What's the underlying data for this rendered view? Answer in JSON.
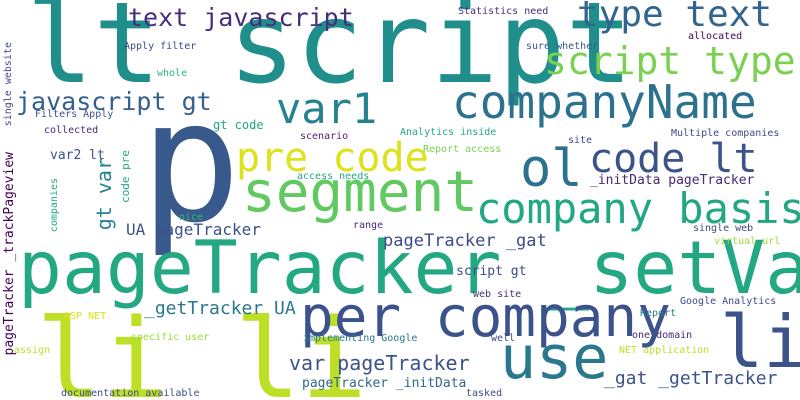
{
  "words": [
    {
      "text": "lt script",
      "color": "#208f8c"
    },
    {
      "text": "p",
      "color": "#38598c"
    },
    {
      "text": "pageTracker _setVar",
      "color": "#24a884"
    },
    {
      "text": "li li",
      "color": "#bddf26"
    },
    {
      "text": "companyName",
      "color": "#2c728e"
    },
    {
      "text": "segment",
      "color": "#60ca60"
    },
    {
      "text": "per company",
      "color": "#3b528b"
    },
    {
      "text": "use",
      "color": "#2a788e"
    },
    {
      "text": "company basis",
      "color": "#22a785"
    },
    {
      "text": "script type",
      "color": "#7ad151"
    },
    {
      "text": "type text",
      "color": "#32658e"
    },
    {
      "text": "var1",
      "color": "#25838e"
    },
    {
      "text": "pre code",
      "color": "#dde318"
    },
    {
      "text": "ol",
      "color": "#2c728e"
    },
    {
      "text": "code lt",
      "color": "#3b528b"
    },
    {
      "text": "li",
      "color": "#3b528b"
    },
    {
      "text": "text javascript",
      "color": "#472d7b"
    },
    {
      "text": "javascript gt",
      "color": "#35608d"
    },
    {
      "text": "gt var",
      "color": "#25838e"
    },
    {
      "text": "UA pageTracker",
      "color": "#3b528b"
    },
    {
      "text": "pageTracker _gat",
      "color": "#3e4a89"
    },
    {
      "text": "var pageTracker",
      "color": "#3b528b"
    },
    {
      "text": "_getTracker UA",
      "color": "#2a788e"
    },
    {
      "text": "_gat _getTracker",
      "color": "#3b528b"
    },
    {
      "text": "pageTracker _initData",
      "color": "#31688e"
    },
    {
      "text": "_initData pageTracker",
      "color": "#482878"
    },
    {
      "text": "Statistics need",
      "color": "#472d7b"
    },
    {
      "text": "sure whether",
      "color": "#38598c"
    },
    {
      "text": "allocated",
      "color": "#440154"
    },
    {
      "text": "Apply filter",
      "color": "#3e4a89"
    },
    {
      "text": "whole",
      "color": "#2fb47c"
    },
    {
      "text": "gt code",
      "color": "#22a785"
    },
    {
      "text": "scenario",
      "color": "#482878"
    },
    {
      "text": "Analytics inside",
      "color": "#22a785"
    },
    {
      "text": "site",
      "color": "#414487"
    },
    {
      "text": "Multiple companies",
      "color": "#3e4a89"
    },
    {
      "text": "Filters Apply",
      "color": "#3b528b"
    },
    {
      "text": "collected",
      "color": "#482878"
    },
    {
      "text": "var2 lt",
      "color": "#3b528b"
    },
    {
      "text": "Report access",
      "color": "#7ad151"
    },
    {
      "text": "access needs",
      "color": "#22a785"
    },
    {
      "text": "nice",
      "color": "#2fb47c"
    },
    {
      "text": "range",
      "color": "#482878"
    },
    {
      "text": "single web",
      "color": "#3e4a89"
    },
    {
      "text": "virtual url",
      "color": "#a0da39"
    },
    {
      "text": "script gt",
      "color": "#3e4a89"
    },
    {
      "text": "web site",
      "color": "#472d7b"
    },
    {
      "text": "Google Analytics",
      "color": "#3e4a89"
    },
    {
      "text": "Report",
      "color": "#2a788e"
    },
    {
      "text": "ASP NET",
      "color": "#dde318"
    },
    {
      "text": "specific user",
      "color": "#a0da39"
    },
    {
      "text": "implementing Google",
      "color": "#2a788e"
    },
    {
      "text": "well",
      "color": "#414487"
    },
    {
      "text": "one domain",
      "color": "#482878"
    },
    {
      "text": "NET application",
      "color": "#bddf26"
    },
    {
      "text": "assign",
      "color": "#bddf26"
    },
    {
      "text": "documentation available",
      "color": "#3e4a89"
    },
    {
      "text": "tasked",
      "color": "#3e4a89"
    },
    {
      "text": "single website",
      "color": "#3e4a89"
    },
    {
      "text": "pageTracker _trackPageview",
      "color": "#440154"
    },
    {
      "text": "companies",
      "color": "#22a785"
    },
    {
      "text": "code pre",
      "color": "#22a785"
    }
  ]
}
